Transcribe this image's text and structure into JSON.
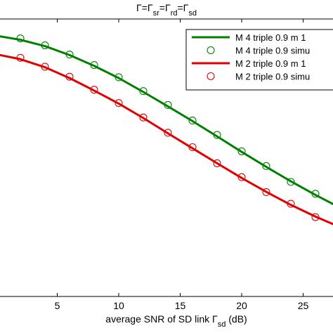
{
  "chart_data": {
    "type": "line",
    "title": "Γ=Γsr=Γrd=Γsd",
    "title_parts": [
      {
        "text": "Γ=Γ",
        "sub": false
      },
      {
        "text": "sr",
        "sub": true
      },
      {
        "text": "=Γ",
        "sub": false
      },
      {
        "text": "rd",
        "sub": true
      },
      {
        "text": "=Γ",
        "sub": false
      },
      {
        "text": "sd",
        "sub": true
      }
    ],
    "xlabel": "average SNR of SD link Γsd (dB)",
    "xlabel_parts": [
      {
        "text": "average SNR of SD link Γ",
        "sub": false
      },
      {
        "text": "sd",
        "sub": true
      },
      {
        "text": " (dB)",
        "sub": false
      }
    ],
    "xlim": [
      0,
      28
    ],
    "ylim": [
      0,
      1
    ],
    "x_ticks": [
      5,
      10,
      15,
      20,
      25
    ],
    "x_tick_labels": [
      "5",
      "10",
      "15",
      "20",
      "25"
    ],
    "grid": false,
    "legend_position": "top-right",
    "series": [
      {
        "name": "M 4 triple 0.9 m 1",
        "style": "line",
        "color": "#008000",
        "x": [
          0,
          2,
          4,
          6,
          8,
          10,
          12,
          14,
          16,
          18,
          20,
          22,
          24,
          26,
          28
        ],
        "y": [
          0.94,
          0.925,
          0.902,
          0.87,
          0.831,
          0.787,
          0.737,
          0.685,
          0.632,
          0.577,
          0.521,
          0.467,
          0.415,
          0.366,
          0.32
        ]
      },
      {
        "name": "M 4 triple 0.9 simu",
        "style": "marker",
        "marker": "circle",
        "color": "#008000",
        "x": [
          2,
          4,
          6,
          8,
          10,
          12,
          14,
          16,
          18,
          20,
          22,
          24,
          26
        ],
        "y": [
          0.93,
          0.905,
          0.872,
          0.834,
          0.79,
          0.74,
          0.69,
          0.634,
          0.582,
          0.523,
          0.47,
          0.413,
          0.37
        ]
      },
      {
        "name": "M 2 triple 0.9 m 1",
        "style": "line",
        "color": "#e00000",
        "x": [
          0,
          2,
          4,
          6,
          8,
          10,
          12,
          14,
          16,
          18,
          20,
          22,
          24,
          26,
          28
        ],
        "y": [
          0.873,
          0.855,
          0.826,
          0.787,
          0.742,
          0.695,
          0.643,
          0.588,
          0.534,
          0.48,
          0.427,
          0.377,
          0.33,
          0.288,
          0.25
        ]
      },
      {
        "name": "M 2 triple 0.9 simu",
        "style": "marker",
        "marker": "circle",
        "color": "#e00000",
        "x": [
          2,
          4,
          6,
          8,
          10,
          12,
          14,
          16,
          18,
          20,
          22,
          24,
          26
        ],
        "y": [
          0.86,
          0.828,
          0.792,
          0.745,
          0.697,
          0.645,
          0.59,
          0.538,
          0.48,
          0.43,
          0.376,
          0.334,
          0.286
        ]
      }
    ]
  }
}
